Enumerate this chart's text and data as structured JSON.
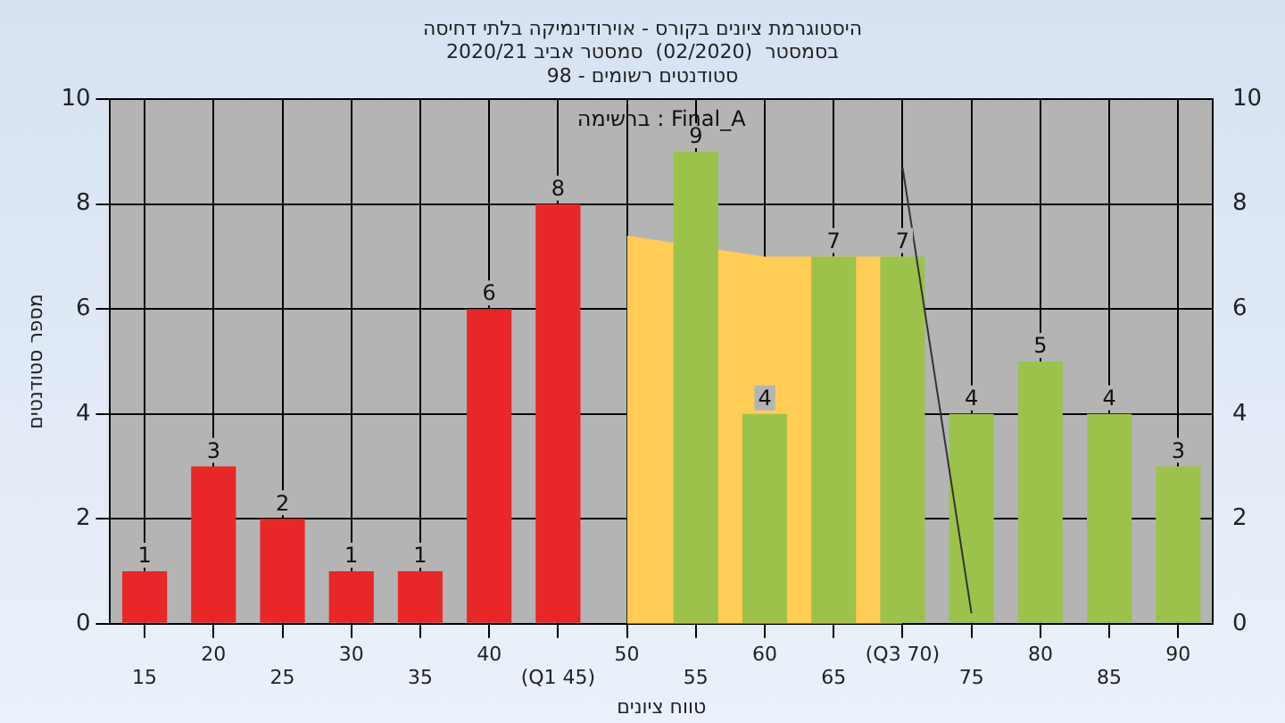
{
  "chart_data": {
    "type": "bar",
    "title": [
      "היסטוגרמת ציונים בקורס - אוירודינמיקה בלתי דחיסה",
      "בסמסטר  (02/2020)  סמסטר אביב 2020/21",
      "סטודנטים רשומים - 98"
    ],
    "xlabel": "טווח ציונים",
    "ylabel": "מספר סטודנטים",
    "annotations": [
      "ברשימה : Final_A"
    ],
    "categories": [
      "15",
      "20",
      "25",
      "30",
      "35",
      "40",
      "(Q1 45)",
      "50",
      "55",
      "60",
      "65",
      "(Q3 70)",
      "75",
      "80",
      "85",
      "90"
    ],
    "series": [
      {
        "type": "bar",
        "values": [
          1,
          3,
          2,
          1,
          1,
          6,
          8,
          null,
          9,
          4,
          7,
          7,
          4,
          5,
          4,
          3
        ],
        "value_labels": [
          "1",
          "3",
          "2",
          "1",
          "1",
          "6",
          "8",
          null,
          "9",
          "4",
          "7",
          "7",
          "4",
          "5",
          "4",
          "3"
        ],
        "colors": [
          "#e82828",
          "#e82828",
          "#e82828",
          "#e82828",
          "#e82828",
          "#e82828",
          "#e82828",
          "#e82828",
          "#9cc24c",
          "#9cc24c",
          "#9cc24c",
          "#9cc24c",
          "#9cc24c",
          "#9cc24c",
          "#9cc24c",
          "#9cc24c"
        ]
      },
      {
        "type": "area",
        "color": "#ffcc55",
        "values": [
          null,
          null,
          null,
          null,
          null,
          null,
          null,
          7.4,
          null,
          7.0,
          null,
          7.0,
          null,
          null,
          null,
          null
        ]
      },
      {
        "type": "line",
        "color": "#333333",
        "values": [
          null,
          null,
          null,
          null,
          null,
          null,
          null,
          null,
          null,
          null,
          null,
          8.7,
          0.2,
          null,
          null,
          null
        ]
      }
    ],
    "ylim": [
      0,
      10
    ],
    "yticks": [
      0,
      2,
      4,
      6,
      8,
      10
    ],
    "y2lim": [
      0,
      10
    ],
    "y2ticks": [
      0,
      2,
      4,
      6,
      8,
      10
    ],
    "grid": true,
    "legend": false
  }
}
